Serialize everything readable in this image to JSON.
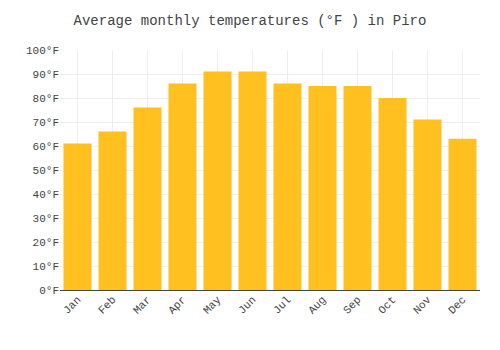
{
  "chart_data": {
    "type": "bar",
    "title": "Average monthly temperatures (°F ) in Piro",
    "categories": [
      "Jan",
      "Feb",
      "Mar",
      "Apr",
      "May",
      "Jun",
      "Jul",
      "Aug",
      "Sep",
      "Oct",
      "Nov",
      "Dec"
    ],
    "values": [
      61,
      66,
      76,
      86,
      91,
      91,
      86,
      85,
      85,
      80,
      71,
      63
    ],
    "color": "#FFC020",
    "ylim": [
      0,
      100
    ],
    "yticks": [
      {
        "value": 0,
        "label": "0°F"
      },
      {
        "value": 10,
        "label": "10°F"
      },
      {
        "value": 20,
        "label": "20°F"
      },
      {
        "value": 30,
        "label": "30°F"
      },
      {
        "value": 40,
        "label": "40°F"
      },
      {
        "value": 50,
        "label": "50°F"
      },
      {
        "value": 60,
        "label": "60°F"
      },
      {
        "value": 70,
        "label": "70°F"
      },
      {
        "value": 80,
        "label": "80°F"
      },
      {
        "value": 90,
        "label": "90°F"
      },
      {
        "value": 100,
        "label": "100°F"
      }
    ],
    "grid": true
  }
}
